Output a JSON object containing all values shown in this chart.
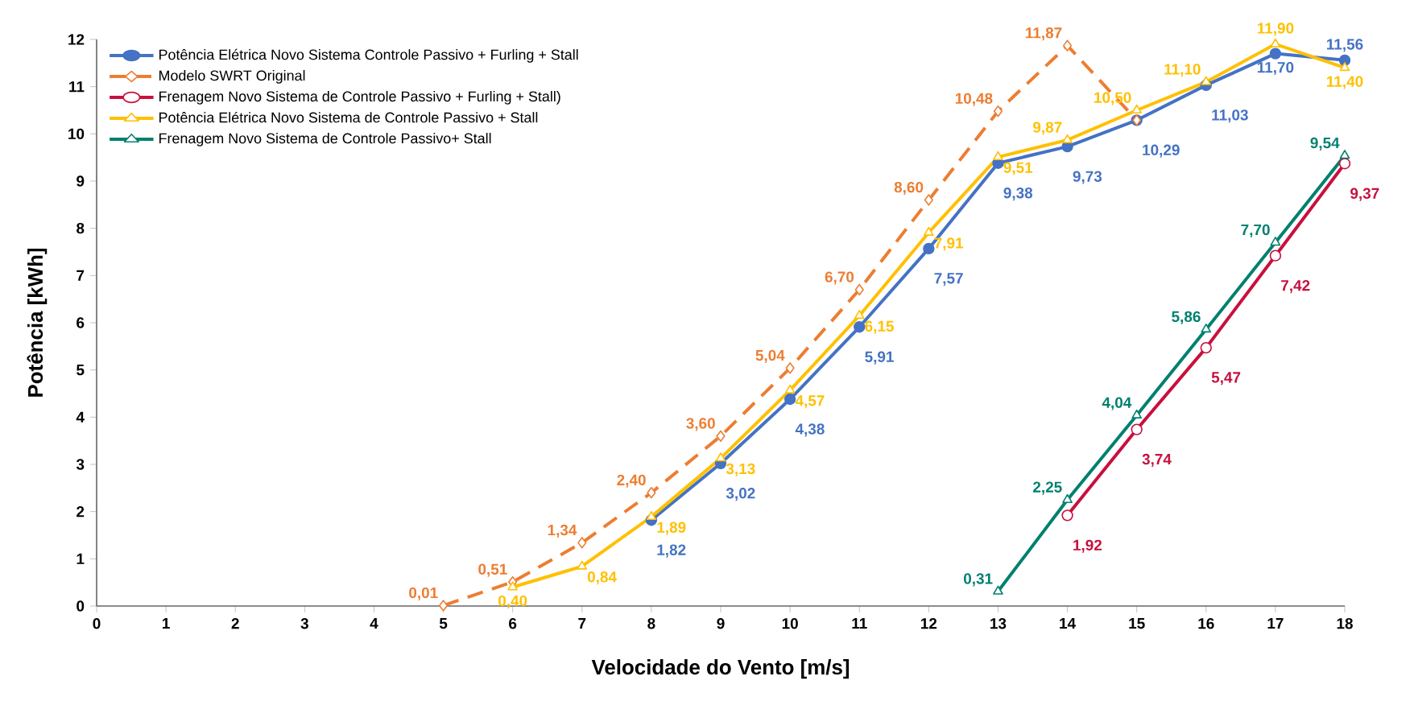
{
  "chart_data": {
    "type": "line",
    "xlabel": "Velocidade do Vento [m/s]",
    "ylabel": "Potência [kWh]",
    "xlim": [
      0,
      18
    ],
    "ylim": [
      0,
      12
    ],
    "xticks": [
      0,
      1,
      2,
      3,
      4,
      5,
      6,
      7,
      8,
      9,
      10,
      11,
      12,
      13,
      14,
      15,
      16,
      17,
      18
    ],
    "yticks": [
      0,
      1,
      2,
      3,
      4,
      5,
      6,
      7,
      8,
      9,
      10,
      11,
      12
    ],
    "legend": "top left",
    "series": [
      {
        "name": "Potência Elétrica Novo Sistema Controle Passivo + Furling + Stall",
        "color": "#4472c4",
        "marker": "circle",
        "line_style": "solid",
        "x": [
          8,
          9,
          10,
          11,
          12,
          13,
          14,
          15,
          16,
          17,
          18
        ],
        "values": [
          1.82,
          3.02,
          4.38,
          5.91,
          7.57,
          9.38,
          9.73,
          10.29,
          11.03,
          11.7,
          11.56
        ],
        "value_labels": [
          "1,82",
          "3,02",
          "4,38",
          "5,91",
          "7,57",
          "9,38",
          "9,73",
          "10,29",
          "11,03",
          "11,70",
          "11,56"
        ]
      },
      {
        "name": "Modelo SWRT Original",
        "color": "#ed7d31",
        "marker": "diamond",
        "line_style": "dashed",
        "x": [
          5,
          6,
          7,
          8,
          9,
          10,
          11,
          12,
          13,
          14,
          15
        ],
        "values": [
          0.01,
          0.51,
          1.34,
          2.4,
          3.6,
          5.04,
          6.7,
          8.6,
          10.48,
          11.87,
          10.29
        ],
        "value_labels": [
          "0,01",
          "0,51",
          "1,34",
          "2,40",
          "3,60",
          "5,04",
          "6,70",
          "8,60",
          "10,48",
          "11,87",
          null
        ]
      },
      {
        "name": "Frenagem Novo Sistema de Controle Passivo + Furling + Stall)",
        "color": "#c8103e",
        "marker": "circle",
        "line_style": "solid",
        "x": [
          14,
          15,
          16,
          17,
          18
        ],
        "values": [
          1.92,
          3.74,
          5.47,
          7.42,
          9.37
        ],
        "value_labels": [
          "1,92",
          "3,74",
          "5,47",
          "7,42",
          "9,37"
        ]
      },
      {
        "name": "Potência Elétrica Novo Sistema de Controle Passivo + Stall",
        "color": "#ffc000",
        "marker": "triangle",
        "line_style": "solid",
        "x": [
          6,
          7,
          8,
          9,
          10,
          11,
          12,
          13,
          14,
          15,
          16,
          17,
          18
        ],
        "values": [
          0.4,
          0.84,
          1.89,
          3.13,
          4.57,
          6.15,
          7.91,
          9.51,
          9.87,
          10.5,
          11.1,
          11.9,
          11.4
        ],
        "value_labels": [
          "0,40",
          "0,84",
          "1,89",
          "3,13",
          "4,57",
          "6,15",
          "7,91",
          "9,51",
          "9,87",
          "10,50",
          "11,10",
          "11,90",
          "11,40"
        ]
      },
      {
        "name": "Frenagem Novo Sistema de Controle Passivo+ Stall",
        "color": "#00806f",
        "marker": "triangle",
        "line_style": "solid",
        "x": [
          13,
          14,
          15,
          16,
          17,
          18
        ],
        "values": [
          0.31,
          2.25,
          4.04,
          5.86,
          7.7,
          9.54
        ],
        "value_labels": [
          "0,31",
          "2,25",
          "4,04",
          "5,86",
          "7,70",
          "9,54"
        ]
      }
    ]
  }
}
